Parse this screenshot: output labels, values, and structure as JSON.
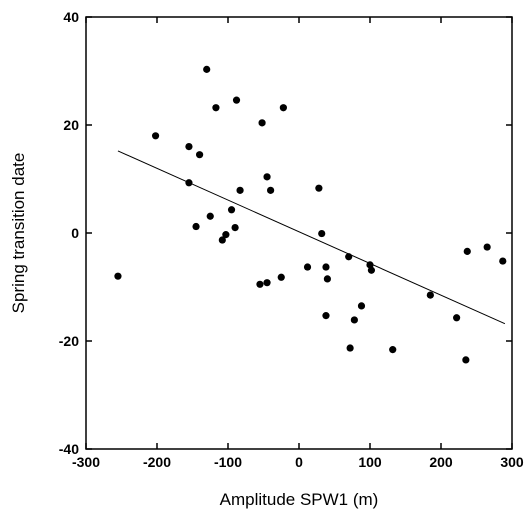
{
  "chart_data": {
    "type": "scatter",
    "title": "",
    "xlabel": "Amplitude SPW1 (m)",
    "ylabel": "Spring transition date",
    "xlim": [
      -300,
      300
    ],
    "ylim": [
      -40,
      40
    ],
    "xticks": [
      -300,
      -200,
      -100,
      0,
      100,
      200,
      300
    ],
    "yticks": [
      -40,
      -20,
      0,
      20,
      40
    ],
    "grid": false,
    "legend": "none",
    "series": [
      {
        "points": [
          [
            -255,
            -8
          ],
          [
            -202,
            18
          ],
          [
            -155,
            16
          ],
          [
            -155,
            9.3
          ],
          [
            -145,
            1.2
          ],
          [
            -140,
            14.5
          ],
          [
            -130,
            30.3
          ],
          [
            -125,
            3.1
          ],
          [
            -117,
            23.2
          ],
          [
            -108,
            -1.3
          ],
          [
            -103,
            -0.3
          ],
          [
            -95,
            4.3
          ],
          [
            -90,
            1.0
          ],
          [
            -88,
            24.6
          ],
          [
            -83,
            7.9
          ],
          [
            -55,
            -9.5
          ],
          [
            -52,
            20.4
          ],
          [
            -45,
            10.4
          ],
          [
            -45,
            -9.2
          ],
          [
            -40,
            7.9
          ],
          [
            -25,
            -8.2
          ],
          [
            -22,
            23.2
          ],
          [
            12,
            -6.3
          ],
          [
            28,
            8.3
          ],
          [
            32,
            -0.1
          ],
          [
            38,
            -6.3
          ],
          [
            38,
            -15.3
          ],
          [
            40,
            -8.5
          ],
          [
            70,
            -4.4
          ],
          [
            72,
            -21.3
          ],
          [
            78,
            -16.1
          ],
          [
            88,
            -13.5
          ],
          [
            100,
            -5.9
          ],
          [
            102,
            -6.9
          ],
          [
            132,
            -21.6
          ],
          [
            185,
            -11.5
          ],
          [
            222,
            -15.7
          ],
          [
            235,
            -23.5
          ],
          [
            237,
            -3.4
          ],
          [
            265,
            -2.6
          ],
          [
            287,
            -5.2
          ]
        ],
        "color": "#000000"
      }
    ],
    "trendline": {
      "x": [
        -255,
        290
      ],
      "y": [
        15.2,
        -16.8
      ],
      "color": "#000000"
    }
  }
}
